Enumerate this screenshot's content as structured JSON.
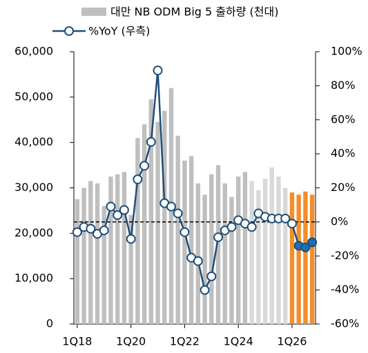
{
  "chart_data": {
    "type": "bar_line",
    "categories": [
      "1Q18",
      null,
      null,
      null,
      null,
      null,
      null,
      null,
      "1Q20",
      null,
      null,
      null,
      null,
      null,
      null,
      null,
      "1Q22",
      null,
      null,
      null,
      null,
      null,
      null,
      null,
      "1Q24",
      null,
      null,
      null,
      null,
      null,
      null,
      null,
      "1Q26",
      null,
      null,
      null
    ],
    "series": [
      {
        "name": "대만 NB ODM Big 5 출하량 (천대)",
        "type": "bar",
        "color": "#bfbfbf",
        "bar_colors": [
          "#bfbfbf",
          "#bfbfbf",
          "#bfbfbf",
          "#bfbfbf",
          "#bfbfbf",
          "#bfbfbf",
          "#bfbfbf",
          "#bfbfbf",
          "#bfbfbf",
          "#bfbfbf",
          "#bfbfbf",
          "#bfbfbf",
          "#bfbfbf",
          "#bfbfbf",
          "#bfbfbf",
          "#bfbfbf",
          "#bfbfbf",
          "#bfbfbf",
          "#bfbfbf",
          "#bfbfbf",
          "#bfbfbf",
          "#bfbfbf",
          "#bfbfbf",
          "#bfbfbf",
          "#bfbfbf",
          "#bfbfbf",
          "#d9d9d9",
          "#d9d9d9",
          "#d9d9d9",
          "#d9d9d9",
          "#d9d9d9",
          "#d9d9d9",
          "#f28e2b",
          "#f28e2b",
          "#f28e2b",
          "#f28e2b"
        ],
        "values": [
          27500,
          30000,
          31500,
          31000,
          26000,
          32500,
          33000,
          33500,
          24000,
          41000,
          44000,
          49500,
          44500,
          47000,
          52000,
          41500,
          36000,
          37000,
          31000,
          28500,
          33000,
          35000,
          31000,
          28000,
          32500,
          33500,
          31500,
          29500,
          32000,
          34500,
          32500,
          30000,
          29000,
          28500,
          29200,
          28500
        ]
      },
      {
        "name": "%YoY (우측)",
        "type": "line",
        "axis": "y2",
        "color": "#1f4e79",
        "marker_fills": [
          "#fff",
          "#fff",
          "#fff",
          "#fff",
          "#fff",
          "#fff",
          "#fff",
          "#fff",
          "#fff",
          "#fff",
          "#fff",
          "#fff",
          "#fff",
          "#fff",
          "#fff",
          "#fff",
          "#fff",
          "#fff",
          "#fff",
          "#fff",
          "#fff",
          "#fff",
          "#fff",
          "#fff",
          "#fff",
          "#fff",
          "#fff",
          "#fff",
          "#fff",
          "#fff",
          "#fff",
          "#fff",
          "#fff",
          "#1f6fb5",
          "#1f6fb5",
          "#1f6fb5"
        ],
        "values": [
          -6,
          -3,
          -4,
          -7,
          -5,
          9,
          4,
          7,
          -10,
          25,
          33,
          47,
          89,
          11,
          9,
          5,
          -6,
          -21,
          -23,
          -40,
          -32,
          -9,
          -5,
          -3,
          1,
          -1,
          -3,
          5,
          3,
          2,
          2,
          2,
          -1,
          -14,
          -15,
          -12
        ]
      }
    ],
    "ylim": [
      0,
      60000
    ],
    "yticks": [
      0,
      {
        "value": 10000,
        "label": "10,000"
      },
      {
        "value": 20000,
        "label": "20,000"
      },
      {
        "value": 30000,
        "label": "30,000"
      },
      {
        "value": 40000,
        "label": "40,000"
      },
      {
        "value": 50000,
        "label": "50,000"
      },
      {
        "value": 60000,
        "label": "60,000"
      }
    ],
    "y2lim": [
      -60,
      100
    ],
    "y2ticks": [
      {
        "value": -60,
        "label": "-60%"
      },
      {
        "value": -40,
        "label": "-40%"
      },
      {
        "value": -20,
        "label": "-20%"
      },
      {
        "value": 0,
        "label": "0%"
      },
      {
        "value": 20,
        "label": "20%"
      },
      {
        "value": 40,
        "label": "40%"
      },
      {
        "value": 60,
        "label": "60%"
      },
      {
        "value": 80,
        "label": "80%"
      },
      {
        "value": 100,
        "label": "100%"
      }
    ],
    "y2_reference_line": 0,
    "legend": "top"
  }
}
